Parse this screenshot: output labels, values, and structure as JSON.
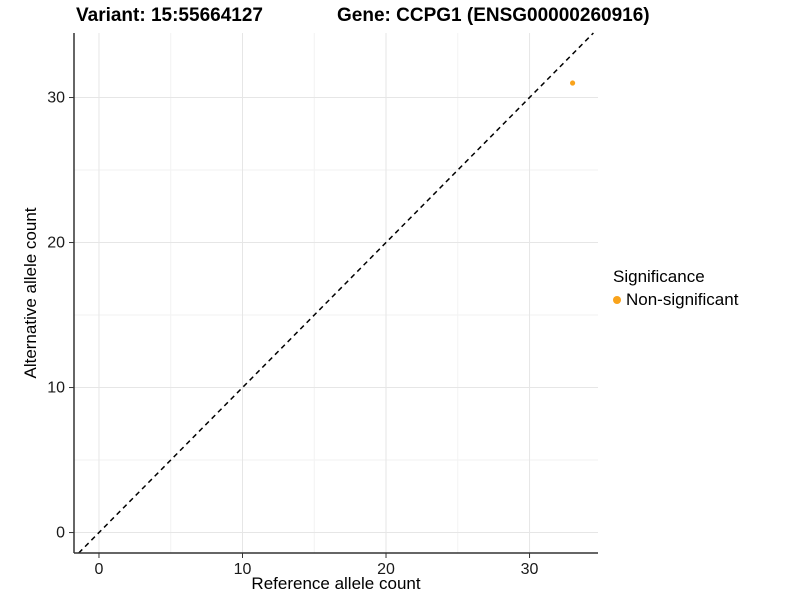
{
  "header": {
    "variant_title": "Variant: 15:55664127",
    "gene_title": "Gene: CCPG1 (ENSG00000260916)"
  },
  "axes": {
    "x_label": "Reference allele count",
    "y_label": "Alternative allele count"
  },
  "legend": {
    "title": "Significance",
    "items": [
      {
        "label": "Non-significant",
        "color": "#F9A31B"
      }
    ]
  },
  "colors": {
    "point": "#F9A31B",
    "axis_line": "#333333",
    "tick_label": "#1a1a1a",
    "grid_major": "#e6e6e6",
    "grid_minor": "#f2f2f2",
    "reference_line": "#000000",
    "background": "#ffffff"
  },
  "chart_data": {
    "type": "scatter",
    "title": "Variant: 15:55664127 / Gene: CCPG1 (ENSG00000260916)",
    "xlabel": "Reference allele count",
    "ylabel": "Alternative allele count",
    "xlim": [
      -1.74,
      34.77
    ],
    "ylim": [
      -1.41,
      34.45
    ],
    "xticks": [
      0,
      10,
      20,
      30
    ],
    "yticks": [
      0,
      10,
      20,
      30
    ],
    "minor_xticks": [
      5,
      15,
      25
    ],
    "minor_yticks": [
      5,
      15,
      25
    ],
    "grid": true,
    "legend_position": "right",
    "series": [
      {
        "name": "Non-significant",
        "color": "#F9A31B",
        "points": [
          {
            "x": 33,
            "y": 31
          }
        ]
      }
    ],
    "reference_line": {
      "type": "abline",
      "slope": 1,
      "intercept": 0,
      "style": "dashed",
      "color": "#000000"
    }
  }
}
